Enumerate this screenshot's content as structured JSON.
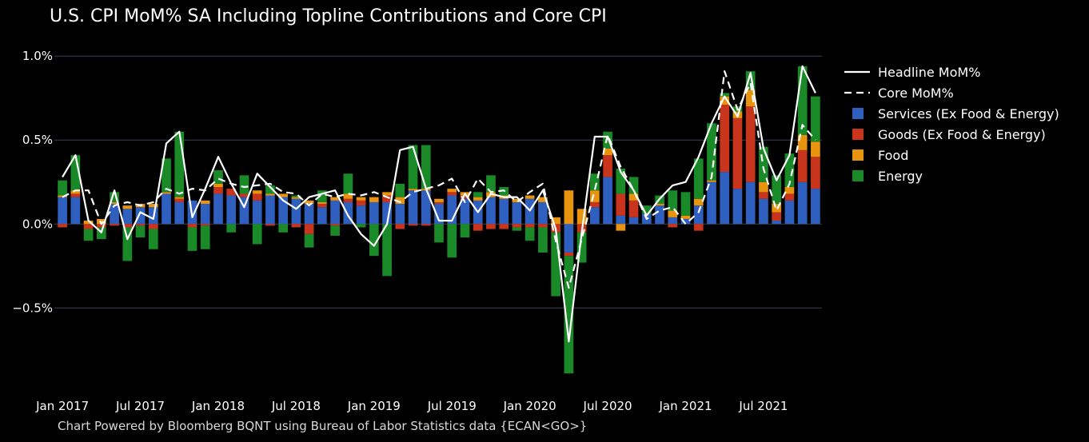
{
  "chart_data": {
    "type": "bar",
    "title": "U.S. CPI MoM% SA Including Topline Contributions and Core CPI",
    "footer": "Chart Powered by Bloomberg BQNT using Bureau of Labor Statistics data    {ECAN<GO>}",
    "xlabel": "",
    "ylabel": "",
    "ylim": [
      -0.97,
      1.02
    ],
    "y_ticks": [
      1.0,
      0.5,
      0.0,
      -0.5
    ],
    "y_tick_labels": [
      "1.0%",
      "0.5%",
      "0.0%",
      "−0.5%"
    ],
    "x_tick_labels": [
      "Jan 2017",
      "Jul 2017",
      "Jan 2018",
      "Jul 2018",
      "Jan 2019",
      "Jul 2019",
      "Jan 2020",
      "Jul 2020",
      "Jan 2021",
      "Jul 2021"
    ],
    "x_tick_index": [
      0,
      6,
      12,
      18,
      24,
      30,
      36,
      42,
      48,
      54
    ],
    "grid": "horizontal",
    "stacked": true,
    "legend_position": "right",
    "categories": [
      "Jan 2017",
      "Feb 2017",
      "Mar 2017",
      "Apr 2017",
      "May 2017",
      "Jun 2017",
      "Jul 2017",
      "Aug 2017",
      "Sep 2017",
      "Oct 2017",
      "Nov 2017",
      "Dec 2017",
      "Jan 2018",
      "Feb 2018",
      "Mar 2018",
      "Apr 2018",
      "May 2018",
      "Jun 2018",
      "Jul 2018",
      "Aug 2018",
      "Sep 2018",
      "Oct 2018",
      "Nov 2018",
      "Dec 2018",
      "Jan 2019",
      "Feb 2019",
      "Mar 2019",
      "Apr 2019",
      "May 2019",
      "Jun 2019",
      "Jul 2019",
      "Aug 2019",
      "Sep 2019",
      "Oct 2019",
      "Nov 2019",
      "Dec 2019",
      "Jan 2020",
      "Feb 2020",
      "Mar 2020",
      "Apr 2020",
      "May 2020",
      "Jun 2020",
      "Jul 2020",
      "Aug 2020",
      "Sep 2020",
      "Oct 2020",
      "Nov 2020",
      "Dec 2020",
      "Jan 2021",
      "Feb 2021",
      "Mar 2021",
      "Apr 2021",
      "May 2021",
      "Jun 2021",
      "Jul 2021",
      "Aug 2021",
      "Sep 2021",
      "Oct 2021",
      "Nov 2021"
    ],
    "series": [
      {
        "name": "Services (Ex Food & Energy)",
        "color": "#2f5fbf",
        "kind": "bar",
        "values": [
          0.16,
          0.16,
          0.0,
          0.0,
          0.12,
          0.09,
          0.1,
          0.1,
          0.18,
          0.13,
          0.14,
          0.12,
          0.18,
          0.17,
          0.16,
          0.14,
          0.17,
          0.16,
          0.15,
          0.12,
          0.1,
          0.14,
          0.13,
          0.11,
          0.13,
          0.13,
          0.12,
          0.2,
          0.2,
          0.12,
          0.17,
          0.15,
          0.14,
          0.16,
          0.15,
          0.13,
          0.15,
          0.13,
          0.0,
          -0.17,
          0.0,
          0.1,
          0.28,
          0.05,
          0.04,
          0.06,
          0.11,
          0.04,
          0.03,
          0.11,
          0.25,
          0.31,
          0.21,
          0.25,
          0.15,
          0.02,
          0.14,
          0.25,
          0.21
        ]
      },
      {
        "name": "Goods (Ex Food & Energy)",
        "color": "#c8351c",
        "kind": "bar",
        "values": [
          -0.02,
          0.02,
          -0.03,
          -0.02,
          -0.01,
          -0.02,
          -0.01,
          -0.03,
          0.0,
          0.02,
          -0.02,
          -0.01,
          0.04,
          0.04,
          0.02,
          0.04,
          -0.01,
          0.0,
          -0.02,
          -0.06,
          0.02,
          -0.01,
          0.02,
          0.03,
          0.0,
          0.04,
          -0.03,
          -0.01,
          -0.01,
          0.01,
          0.02,
          0.02,
          -0.04,
          -0.03,
          -0.03,
          -0.02,
          -0.02,
          -0.02,
          -0.05,
          -0.02,
          -0.05,
          0.03,
          0.13,
          0.13,
          0.1,
          0.0,
          0.0,
          -0.02,
          0.0,
          -0.04,
          0.0,
          0.4,
          0.42,
          0.45,
          0.04,
          0.05,
          0.04,
          0.19,
          0.19
        ]
      },
      {
        "name": "Food",
        "color": "#e8940e",
        "kind": "bar",
        "values": [
          0.01,
          0.02,
          0.02,
          0.03,
          0.01,
          0.02,
          0.02,
          0.02,
          0.01,
          0.01,
          0.0,
          0.02,
          0.02,
          0.0,
          0.0,
          0.02,
          0.01,
          0.02,
          0.01,
          0.02,
          0.01,
          0.02,
          0.03,
          0.02,
          0.03,
          0.02,
          0.04,
          0.01,
          0.01,
          0.02,
          0.02,
          0.02,
          0.02,
          0.03,
          0.02,
          0.02,
          0.02,
          0.03,
          0.04,
          0.2,
          0.09,
          0.07,
          0.04,
          -0.04,
          0.04,
          0.0,
          0.01,
          0.04,
          0.02,
          0.04,
          0.01,
          0.05,
          0.04,
          0.1,
          0.06,
          0.05,
          0.04,
          0.09,
          0.09
        ]
      },
      {
        "name": "Energy",
        "color": "#1a8a28",
        "kind": "bar",
        "values": [
          0.09,
          0.21,
          -0.07,
          -0.07,
          0.06,
          -0.2,
          -0.07,
          -0.12,
          0.2,
          0.39,
          -0.14,
          -0.14,
          0.08,
          -0.05,
          0.11,
          -0.12,
          0.05,
          -0.05,
          0.01,
          -0.08,
          0.07,
          -0.06,
          0.12,
          -0.02,
          -0.19,
          -0.31,
          0.08,
          0.26,
          0.26,
          -0.11,
          -0.2,
          -0.08,
          0.03,
          0.1,
          0.05,
          -0.02,
          -0.08,
          -0.15,
          -0.38,
          -0.7,
          -0.18,
          0.1,
          0.1,
          0.15,
          0.1,
          0.05,
          0.05,
          0.12,
          0.14,
          0.24,
          0.34,
          0.02,
          0.03,
          0.11,
          0.21,
          0.17,
          0.2,
          0.41,
          0.27
        ]
      },
      {
        "name": "Headline MoM%",
        "color": "#ffffff",
        "kind": "line",
        "dash": "solid",
        "values": [
          0.28,
          0.41,
          0.02,
          -0.05,
          0.2,
          -0.09,
          0.07,
          0.03,
          0.48,
          0.55,
          0.04,
          0.21,
          0.4,
          0.24,
          0.1,
          0.3,
          0.22,
          0.14,
          0.09,
          0.16,
          0.18,
          0.2,
          0.05,
          -0.06,
          -0.13,
          0.0,
          0.44,
          0.46,
          0.21,
          0.02,
          0.02,
          0.18,
          0.07,
          0.18,
          0.16,
          0.16,
          0.08,
          0.2,
          -0.03,
          -0.7,
          -0.05,
          0.52,
          0.52,
          0.31,
          0.2,
          0.05,
          0.15,
          0.23,
          0.25,
          0.4,
          0.6,
          0.76,
          0.64,
          0.9,
          0.45,
          0.26,
          0.41,
          0.94,
          0.78
        ]
      },
      {
        "name": "Core MoM%",
        "color": "#ffffff",
        "kind": "line",
        "dash": "dashed",
        "values": [
          0.16,
          0.2,
          0.2,
          0.0,
          0.11,
          0.13,
          0.11,
          0.13,
          0.21,
          0.18,
          0.21,
          0.2,
          0.27,
          0.24,
          0.22,
          0.23,
          0.24,
          0.19,
          0.18,
          0.11,
          0.18,
          0.16,
          0.18,
          0.17,
          0.19,
          0.16,
          0.13,
          0.19,
          0.21,
          0.23,
          0.27,
          0.13,
          0.27,
          0.19,
          0.2,
          0.13,
          0.19,
          0.24,
          -0.1,
          -0.38,
          -0.09,
          0.2,
          0.53,
          0.34,
          0.2,
          0.03,
          0.08,
          0.1,
          0.0,
          0.07,
          0.28,
          0.91,
          0.68,
          0.84,
          0.33,
          0.08,
          0.24,
          0.59,
          0.5
        ]
      }
    ]
  }
}
